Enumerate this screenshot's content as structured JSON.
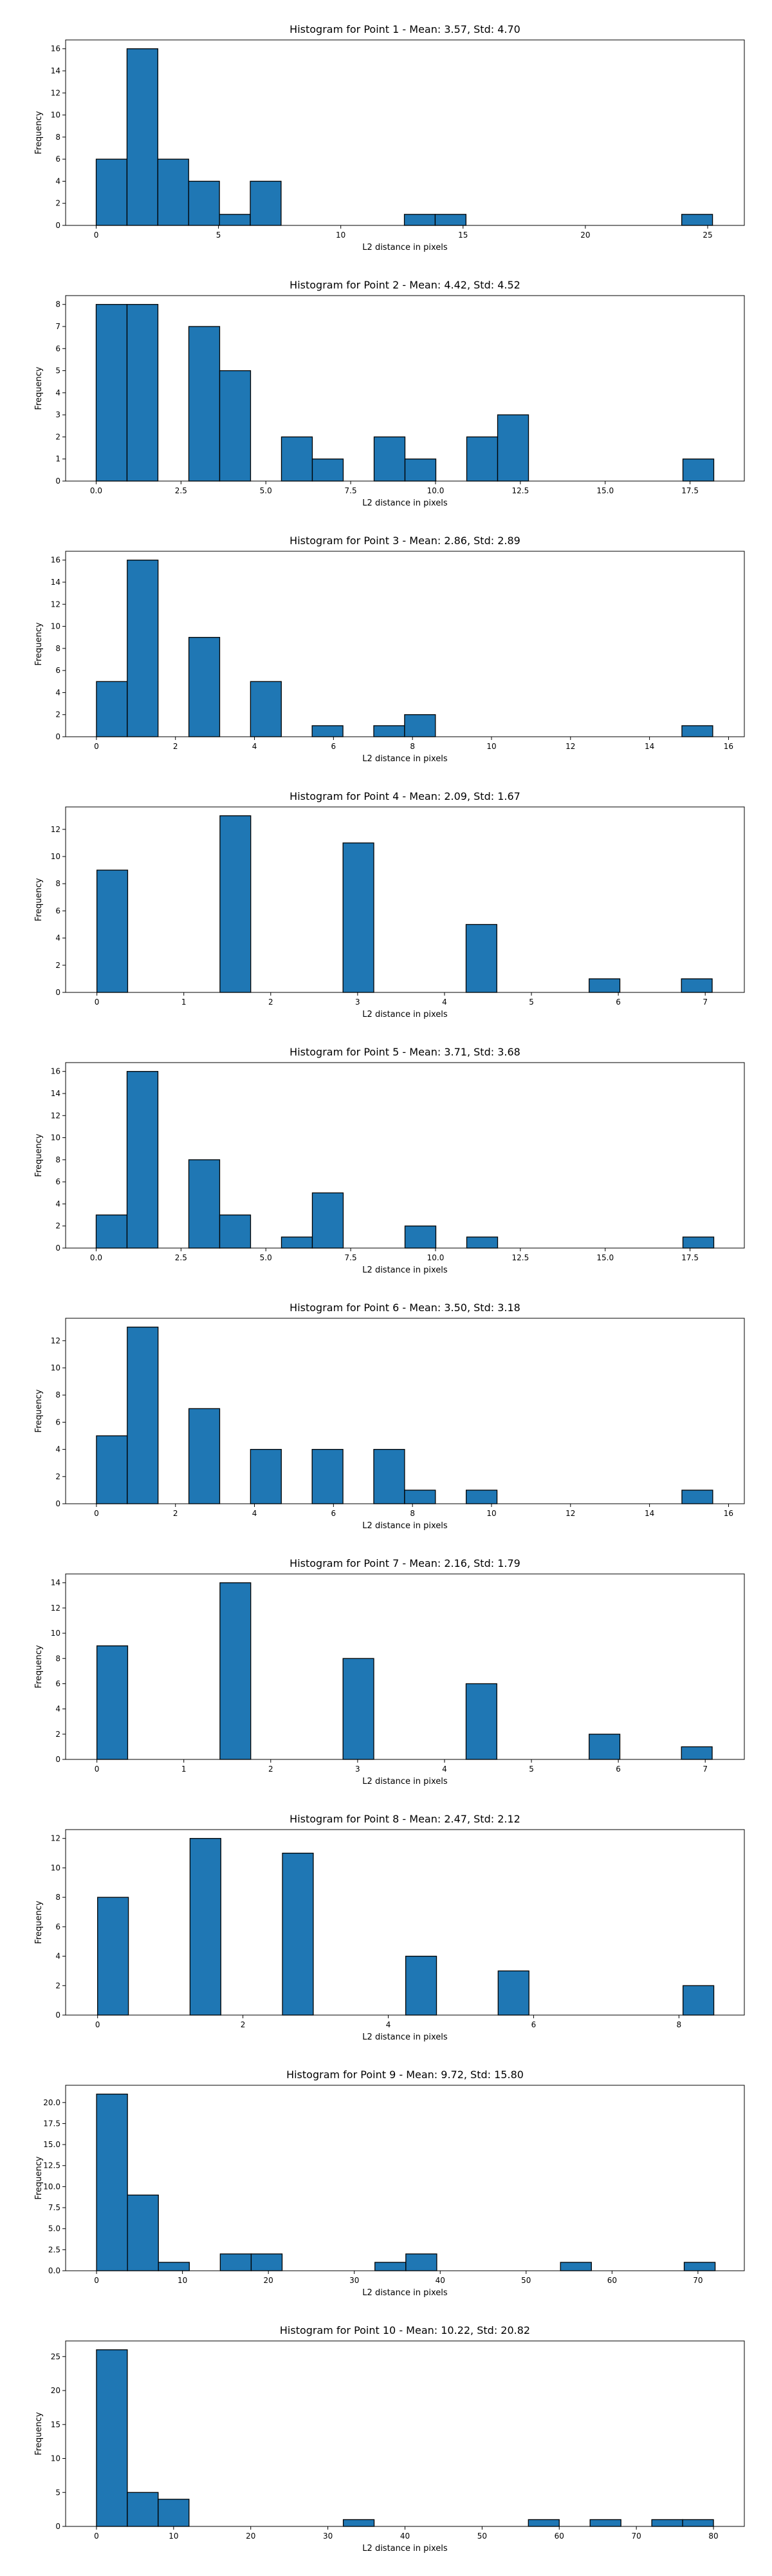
{
  "figure": {
    "background": "#ffffff",
    "bar_color": "#1f77b4",
    "edge_color": "#000000"
  },
  "chart_data": [
    {
      "type": "bar",
      "title": "Histogram for Point 1 - Mean: 3.57, Std: 4.70",
      "xlabel": "L2 distance in pixels",
      "ylabel": "Frequency",
      "xlim": [
        -1.25,
        26.5
      ],
      "ylim": [
        0,
        16.8
      ],
      "xticks": [
        0,
        5,
        10,
        15,
        20,
        25
      ],
      "xtick_labels": [
        "0",
        "5",
        "10",
        "15",
        "20",
        "25"
      ],
      "yticks": [
        0,
        2,
        4,
        6,
        8,
        10,
        12,
        14,
        16
      ],
      "ytick_labels": [
        "0",
        "2",
        "4",
        "6",
        "8",
        "10",
        "12",
        "14",
        "16"
      ],
      "bins": [
        {
          "x0": 0.0,
          "x1": 1.26,
          "value": 6
        },
        {
          "x0": 1.26,
          "x1": 2.52,
          "value": 16
        },
        {
          "x0": 2.52,
          "x1": 3.78,
          "value": 6
        },
        {
          "x0": 3.78,
          "x1": 5.04,
          "value": 4
        },
        {
          "x0": 5.04,
          "x1": 6.3,
          "value": 1
        },
        {
          "x0": 6.3,
          "x1": 7.56,
          "value": 4
        },
        {
          "x0": 12.6,
          "x1": 13.86,
          "value": 1
        },
        {
          "x0": 13.86,
          "x1": 15.12,
          "value": 1
        },
        {
          "x0": 23.94,
          "x1": 25.2,
          "value": 1
        }
      ]
    },
    {
      "type": "bar",
      "title": "Histogram for Point 2 - Mean: 4.42, Std: 4.52",
      "xlabel": "L2 distance in pixels",
      "ylabel": "Frequency",
      "xlim": [
        -0.9,
        19.1
      ],
      "ylim": [
        0,
        8.4
      ],
      "xticks": [
        0,
        2.5,
        5,
        7.5,
        10,
        12.5,
        15,
        17.5
      ],
      "xtick_labels": [
        "0.0",
        "2.5",
        "5.0",
        "7.5",
        "10.0",
        "12.5",
        "15.0",
        "17.5"
      ],
      "yticks": [
        0,
        1,
        2,
        3,
        4,
        5,
        6,
        7,
        8
      ],
      "ytick_labels": [
        "0",
        "1",
        "2",
        "3",
        "4",
        "5",
        "6",
        "7",
        "8"
      ],
      "bins": [
        {
          "x0": 0.0,
          "x1": 0.91,
          "value": 8
        },
        {
          "x0": 0.91,
          "x1": 1.82,
          "value": 8
        },
        {
          "x0": 2.73,
          "x1": 3.64,
          "value": 7
        },
        {
          "x0": 3.64,
          "x1": 4.55,
          "value": 5
        },
        {
          "x0": 5.46,
          "x1": 6.37,
          "value": 2
        },
        {
          "x0": 6.37,
          "x1": 7.28,
          "value": 1
        },
        {
          "x0": 8.19,
          "x1": 9.1,
          "value": 2
        },
        {
          "x0": 9.1,
          "x1": 10.01,
          "value": 1
        },
        {
          "x0": 10.92,
          "x1": 11.83,
          "value": 2
        },
        {
          "x0": 11.83,
          "x1": 12.74,
          "value": 3
        },
        {
          "x0": 17.29,
          "x1": 18.2,
          "value": 1
        }
      ]
    },
    {
      "type": "bar",
      "title": "Histogram for Point 3 - Mean: 2.86, Std: 2.89",
      "xlabel": "L2 distance in pixels",
      "ylabel": "Frequency",
      "xlim": [
        -0.78,
        16.4
      ],
      "ylim": [
        0,
        16.8
      ],
      "xticks": [
        0,
        2,
        4,
        6,
        8,
        10,
        12,
        14,
        16
      ],
      "xtick_labels": [
        "0",
        "2",
        "4",
        "6",
        "8",
        "10",
        "12",
        "14",
        "16"
      ],
      "yticks": [
        0,
        2,
        4,
        6,
        8,
        10,
        12,
        14,
        16
      ],
      "ytick_labels": [
        "0",
        "2",
        "4",
        "6",
        "8",
        "10",
        "12",
        "14",
        "16"
      ],
      "bins": [
        {
          "x0": 0.0,
          "x1": 0.78,
          "value": 5
        },
        {
          "x0": 0.78,
          "x1": 1.56,
          "value": 16
        },
        {
          "x0": 2.34,
          "x1": 3.12,
          "value": 9
        },
        {
          "x0": 3.9,
          "x1": 4.68,
          "value": 5
        },
        {
          "x0": 5.46,
          "x1": 6.24,
          "value": 1
        },
        {
          "x0": 7.02,
          "x1": 7.8,
          "value": 1
        },
        {
          "x0": 7.8,
          "x1": 8.58,
          "value": 2
        },
        {
          "x0": 14.82,
          "x1": 15.6,
          "value": 1
        }
      ]
    },
    {
      "type": "bar",
      "title": "Histogram for Point 4 - Mean: 2.09, Std: 1.67",
      "xlabel": "L2 distance in pixels",
      "ylabel": "Frequency",
      "xlim": [
        -0.36,
        7.45
      ],
      "ylim": [
        0,
        13.65
      ],
      "xticks": [
        0,
        1,
        2,
        3,
        4,
        5,
        6,
        7
      ],
      "xtick_labels": [
        "0",
        "1",
        "2",
        "3",
        "4",
        "5",
        "6",
        "7"
      ],
      "yticks": [
        0,
        2,
        4,
        6,
        8,
        10,
        12
      ],
      "ytick_labels": [
        "0",
        "2",
        "4",
        "6",
        "8",
        "10",
        "12"
      ],
      "bins": [
        {
          "x0": 0.0,
          "x1": 0.354,
          "value": 9
        },
        {
          "x0": 1.416,
          "x1": 1.77,
          "value": 13
        },
        {
          "x0": 2.832,
          "x1": 3.186,
          "value": 11
        },
        {
          "x0": 4.248,
          "x1": 4.602,
          "value": 5
        },
        {
          "x0": 5.664,
          "x1": 6.018,
          "value": 1
        },
        {
          "x0": 6.726,
          "x1": 7.08,
          "value": 1
        }
      ]
    },
    {
      "type": "bar",
      "title": "Histogram for Point 5 - Mean: 3.71, Std: 3.68",
      "xlabel": "L2 distance in pixels",
      "ylabel": "Frequency",
      "xlim": [
        -0.9,
        19.1
      ],
      "ylim": [
        0,
        16.8
      ],
      "xticks": [
        0,
        2.5,
        5,
        7.5,
        10,
        12.5,
        15,
        17.5
      ],
      "xtick_labels": [
        "0.0",
        "2.5",
        "5.0",
        "7.5",
        "10.0",
        "12.5",
        "15.0",
        "17.5"
      ],
      "yticks": [
        0,
        2,
        4,
        6,
        8,
        10,
        12,
        14,
        16
      ],
      "ytick_labels": [
        "0",
        "2",
        "4",
        "6",
        "8",
        "10",
        "12",
        "14",
        "16"
      ],
      "bins": [
        {
          "x0": 0.0,
          "x1": 0.91,
          "value": 3
        },
        {
          "x0": 0.91,
          "x1": 1.82,
          "value": 16
        },
        {
          "x0": 2.73,
          "x1": 3.64,
          "value": 8
        },
        {
          "x0": 3.64,
          "x1": 4.55,
          "value": 3
        },
        {
          "x0": 5.46,
          "x1": 6.37,
          "value": 1
        },
        {
          "x0": 6.37,
          "x1": 7.28,
          "value": 5
        },
        {
          "x0": 9.1,
          "x1": 10.01,
          "value": 2
        },
        {
          "x0": 10.92,
          "x1": 11.83,
          "value": 1
        },
        {
          "x0": 17.29,
          "x1": 18.2,
          "value": 1
        }
      ]
    },
    {
      "type": "bar",
      "title": "Histogram for Point 6 - Mean: 3.50, Std: 3.18",
      "xlabel": "L2 distance in pixels",
      "ylabel": "Frequency",
      "xlim": [
        -0.78,
        16.4
      ],
      "ylim": [
        0,
        13.65
      ],
      "xticks": [
        0,
        2,
        4,
        6,
        8,
        10,
        12,
        14,
        16
      ],
      "xtick_labels": [
        "0",
        "2",
        "4",
        "6",
        "8",
        "10",
        "12",
        "14",
        "16"
      ],
      "yticks": [
        0,
        2,
        4,
        6,
        8,
        10,
        12
      ],
      "ytick_labels": [
        "0",
        "2",
        "4",
        "6",
        "8",
        "10",
        "12"
      ],
      "bins": [
        {
          "x0": 0.0,
          "x1": 0.78,
          "value": 5
        },
        {
          "x0": 0.78,
          "x1": 1.56,
          "value": 13
        },
        {
          "x0": 2.34,
          "x1": 3.12,
          "value": 7
        },
        {
          "x0": 3.9,
          "x1": 4.68,
          "value": 4
        },
        {
          "x0": 5.46,
          "x1": 6.24,
          "value": 4
        },
        {
          "x0": 7.02,
          "x1": 7.8,
          "value": 4
        },
        {
          "x0": 7.8,
          "x1": 8.58,
          "value": 1
        },
        {
          "x0": 9.36,
          "x1": 10.14,
          "value": 1
        },
        {
          "x0": 14.82,
          "x1": 15.6,
          "value": 1
        }
      ]
    },
    {
      "type": "bar",
      "title": "Histogram for Point 7 - Mean: 2.16, Std: 1.79",
      "xlabel": "L2 distance in pixels",
      "ylabel": "Frequency",
      "xlim": [
        -0.36,
        7.45
      ],
      "ylim": [
        0,
        14.7
      ],
      "xticks": [
        0,
        1,
        2,
        3,
        4,
        5,
        6,
        7
      ],
      "xtick_labels": [
        "0",
        "1",
        "2",
        "3",
        "4",
        "5",
        "6",
        "7"
      ],
      "yticks": [
        0,
        2,
        4,
        6,
        8,
        10,
        12,
        14
      ],
      "ytick_labels": [
        "0",
        "2",
        "4",
        "6",
        "8",
        "10",
        "12",
        "14"
      ],
      "bins": [
        {
          "x0": 0.0,
          "x1": 0.354,
          "value": 9
        },
        {
          "x0": 1.416,
          "x1": 1.77,
          "value": 14
        },
        {
          "x0": 2.832,
          "x1": 3.186,
          "value": 8
        },
        {
          "x0": 4.248,
          "x1": 4.602,
          "value": 6
        },
        {
          "x0": 5.664,
          "x1": 6.018,
          "value": 2
        },
        {
          "x0": 6.726,
          "x1": 7.08,
          "value": 1
        }
      ]
    },
    {
      "type": "bar",
      "title": "Histogram for Point 8 - Mean: 2.47, Std: 2.12",
      "xlabel": "L2 distance in pixels",
      "ylabel": "Frequency",
      "xlim": [
        -0.44,
        8.9
      ],
      "ylim": [
        0,
        12.6
      ],
      "xticks": [
        0,
        2,
        4,
        6,
        8
      ],
      "xtick_labels": [
        "0",
        "2",
        "4",
        "6",
        "8"
      ],
      "yticks": [
        0,
        2,
        4,
        6,
        8,
        10,
        12
      ],
      "ytick_labels": [
        "0",
        "2",
        "4",
        "6",
        "8",
        "10",
        "12"
      ],
      "bins": [
        {
          "x0": 0.0,
          "x1": 0.424,
          "value": 8
        },
        {
          "x0": 1.272,
          "x1": 1.696,
          "value": 12
        },
        {
          "x0": 2.544,
          "x1": 2.968,
          "value": 11
        },
        {
          "x0": 4.24,
          "x1": 4.664,
          "value": 4
        },
        {
          "x0": 5.512,
          "x1": 5.936,
          "value": 3
        },
        {
          "x0": 8.056,
          "x1": 8.48,
          "value": 2
        }
      ]
    },
    {
      "type": "bar",
      "title": "Histogram for Point 9 - Mean: 9.72, Std: 15.80",
      "xlabel": "L2 distance in pixels",
      "ylabel": "Frequency",
      "xlim": [
        -3.6,
        75.4
      ],
      "ylim": [
        0,
        22.05
      ],
      "xticks": [
        0,
        10,
        20,
        30,
        40,
        50,
        60,
        70
      ],
      "xtick_labels": [
        "0",
        "10",
        "20",
        "30",
        "40",
        "50",
        "60",
        "70"
      ],
      "yticks": [
        0,
        2.5,
        5,
        7.5,
        10,
        12.5,
        15,
        17.5,
        20
      ],
      "ytick_labels": [
        "0.0",
        "2.5",
        "5.0",
        "7.5",
        "10.0",
        "12.5",
        "15.0",
        "17.5",
        "20.0"
      ],
      "bins": [
        {
          "x0": 0.0,
          "x1": 3.6,
          "value": 21
        },
        {
          "x0": 3.6,
          "x1": 7.2,
          "value": 9
        },
        {
          "x0": 7.2,
          "x1": 10.8,
          "value": 1
        },
        {
          "x0": 14.4,
          "x1": 18.0,
          "value": 2
        },
        {
          "x0": 18.0,
          "x1": 21.6,
          "value": 2
        },
        {
          "x0": 32.4,
          "x1": 36.0,
          "value": 1
        },
        {
          "x0": 36.0,
          "x1": 39.6,
          "value": 2
        },
        {
          "x0": 54.0,
          "x1": 57.6,
          "value": 1
        },
        {
          "x0": 68.4,
          "x1": 72.0,
          "value": 1
        }
      ]
    },
    {
      "type": "bar",
      "title": "Histogram for Point 10 - Mean: 10.22, Std: 20.82",
      "xlabel": "L2 distance in pixels",
      "ylabel": "Frequency",
      "xlim": [
        -4.0,
        84.0
      ],
      "ylim": [
        0,
        27.3
      ],
      "xticks": [
        0,
        10,
        20,
        30,
        40,
        50,
        60,
        70,
        80
      ],
      "xtick_labels": [
        "0",
        "10",
        "20",
        "30",
        "40",
        "50",
        "60",
        "70",
        "80"
      ],
      "yticks": [
        0,
        5,
        10,
        15,
        20,
        25
      ],
      "ytick_labels": [
        "0",
        "5",
        "10",
        "15",
        "20",
        "25"
      ],
      "bins": [
        {
          "x0": 0.0,
          "x1": 4.0,
          "value": 26
        },
        {
          "x0": 4.0,
          "x1": 8.0,
          "value": 5
        },
        {
          "x0": 8.0,
          "x1": 12.0,
          "value": 4
        },
        {
          "x0": 32.0,
          "x1": 36.0,
          "value": 1
        },
        {
          "x0": 56.0,
          "x1": 60.0,
          "value": 1
        },
        {
          "x0": 64.0,
          "x1": 68.0,
          "value": 1
        },
        {
          "x0": 72.0,
          "x1": 76.0,
          "value": 1
        },
        {
          "x0": 76.0,
          "x1": 80.0,
          "value": 1
        }
      ]
    }
  ]
}
